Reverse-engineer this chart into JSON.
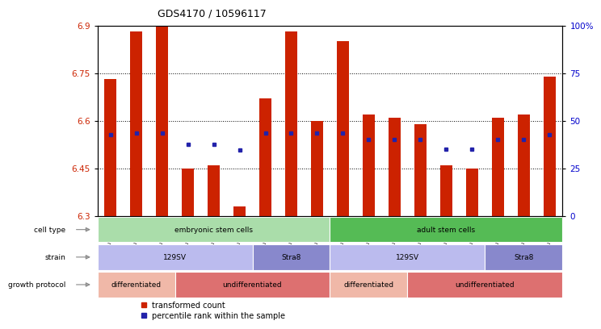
{
  "title": "GDS4170 / 10596117",
  "samples": [
    "GSM560810",
    "GSM560811",
    "GSM560812",
    "GSM560816",
    "GSM560817",
    "GSM560818",
    "GSM560813",
    "GSM560814",
    "GSM560815",
    "GSM560819",
    "GSM560820",
    "GSM560821",
    "GSM560822",
    "GSM560823",
    "GSM560824",
    "GSM560825",
    "GSM560826",
    "GSM560827"
  ],
  "bar_values": [
    6.73,
    6.88,
    6.9,
    6.45,
    6.46,
    6.33,
    6.67,
    6.88,
    6.6,
    6.85,
    6.62,
    6.61,
    6.59,
    6.46,
    6.45,
    6.61,
    6.62,
    6.74
  ],
  "dot_values": [
    6.555,
    6.562,
    6.562,
    6.524,
    6.524,
    6.508,
    6.562,
    6.562,
    6.562,
    6.562,
    6.54,
    6.54,
    6.54,
    6.51,
    6.51,
    6.54,
    6.54,
    6.555
  ],
  "ymin": 6.3,
  "ymax": 6.9,
  "yticks": [
    6.3,
    6.45,
    6.6,
    6.75,
    6.9
  ],
  "ytick_labels": [
    "6.3",
    "6.45",
    "6.6",
    "6.75",
    "6.9"
  ],
  "right_yticks_pct": [
    0,
    25,
    50,
    75,
    100
  ],
  "right_ytick_labels": [
    "0",
    "25",
    "50",
    "75",
    "100%"
  ],
  "bar_color": "#cc2200",
  "dot_color": "#2222aa",
  "bar_bottom": 6.3,
  "cell_type_groups": [
    {
      "label": "embryonic stem cells",
      "start": 0,
      "end": 9,
      "color": "#aaddaa"
    },
    {
      "label": "adult stem cells",
      "start": 9,
      "end": 18,
      "color": "#55bb55"
    }
  ],
  "strain_groups": [
    {
      "label": "129SV",
      "start": 0,
      "end": 6,
      "color": "#bbbbee"
    },
    {
      "label": "Stra8",
      "start": 6,
      "end": 9,
      "color": "#8888cc"
    },
    {
      "label": "129SV",
      "start": 9,
      "end": 15,
      "color": "#bbbbee"
    },
    {
      "label": "Stra8",
      "start": 15,
      "end": 18,
      "color": "#8888cc"
    }
  ],
  "growth_groups": [
    {
      "label": "differentiated",
      "start": 0,
      "end": 3,
      "color": "#f0b8a8"
    },
    {
      "label": "undifferentiated",
      "start": 3,
      "end": 9,
      "color": "#dd7070"
    },
    {
      "label": "differentiated",
      "start": 9,
      "end": 12,
      "color": "#f0b8a8"
    },
    {
      "label": "undifferentiated",
      "start": 12,
      "end": 18,
      "color": "#dd7070"
    }
  ],
  "legend_red_label": "transformed count",
  "legend_blue_label": "percentile rank within the sample",
  "bar_color_legend": "#cc2200",
  "dot_color_legend": "#2222aa",
  "row_labels": [
    "cell type",
    "strain",
    "growth protocol"
  ],
  "ytick_color": "#cc2200",
  "right_ytick_color": "#0000cc",
  "grid_yticks": [
    6.45,
    6.6,
    6.75
  ],
  "bar_width": 0.45
}
